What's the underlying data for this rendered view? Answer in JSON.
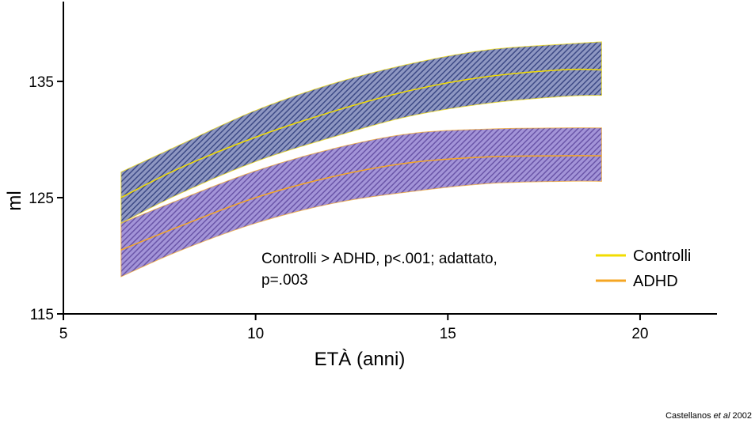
{
  "chart_data": {
    "type": "area",
    "xlabel": "ETÀ (anni)",
    "ylabel": "ml",
    "xlim": [
      5,
      22
    ],
    "ylim": [
      115,
      142
    ],
    "xticks": [
      5,
      10,
      15,
      20
    ],
    "yticks": [
      115,
      125,
      135
    ],
    "x": [
      6.5,
      8,
      10,
      12,
      14,
      16,
      18,
      19
    ],
    "series": [
      {
        "name": "Controlli",
        "color": "#f2dc00",
        "band_color": "#4b5791",
        "mean": [
          125.0,
          127.5,
          130.2,
          132.4,
          134.2,
          135.4,
          136.0,
          136.0
        ],
        "upper": [
          127.2,
          129.5,
          132.5,
          134.8,
          136.5,
          137.7,
          138.2,
          138.4
        ],
        "lower": [
          122.8,
          125.3,
          128.1,
          130.2,
          132.0,
          133.1,
          133.7,
          133.8
        ]
      },
      {
        "name": "ADHD",
        "color": "#f5a623",
        "band_color": "#7460b0",
        "mean": [
          120.5,
          122.5,
          125.0,
          126.8,
          128.0,
          128.5,
          128.6,
          128.6
        ],
        "upper": [
          122.8,
          124.8,
          127.3,
          129.2,
          130.5,
          130.9,
          131.0,
          131.0
        ],
        "lower": [
          118.2,
          120.4,
          122.8,
          124.5,
          125.5,
          126.2,
          126.4,
          126.4
        ]
      }
    ],
    "legend_position": "bottom-right",
    "annotation": {
      "line1": "Controlli > ADHD, p<.001; adattato,",
      "line2": "p=.003"
    }
  },
  "credit": {
    "author": "Castellanos",
    "etal": "et al",
    "year": "2002"
  }
}
